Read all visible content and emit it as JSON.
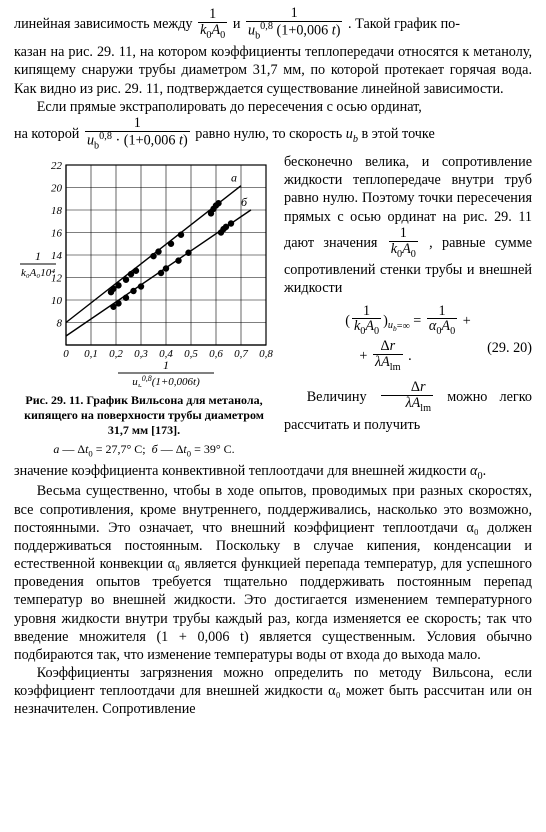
{
  "para1": {
    "t1": "линейная зависимость между ",
    "frac1_num": "1",
    "frac1_den": "k₀A₀",
    "t2": " и ",
    "frac2_num": "1",
    "frac2_den": "u_b^{0,8} (1+0,006 t)",
    "t3": " . Такой график по-",
    "t4": "казан на рис. 29. 11, на котором коэффициенты теплопередачи относятся к метанолу, кипящему снаружи трубы диаметром 31,7 мм, по которой протекает горячая вода. Как видно из рис. 29. 11, подтверждается существование линейной зависимости."
  },
  "para2": {
    "t1": "Если прямые экстраполировать до пересечения с осью ординат,",
    "t2": "на которой ",
    "frac_num": "1",
    "frac_den": "u_b^{0,8} · (1+0,006 t)",
    "t3": " равно нулю, то скорость u_b в этой точке"
  },
  "rightcol": {
    "t1": "бесконечно велика, и сопротивление жидкости теплопередаче внутри труб равно нулю. Поэтому точки пересечения прямых с осью ординат на рис. 29. 11 дают значения ",
    "frac_num": "1",
    "frac_den": "k₀A₀",
    "t2": " , равные сумме сопротивлений стенки трубы и внешней жидкости"
  },
  "eq_29_20": {
    "lhs_pre": "(",
    "lhs_frac_num": "1",
    "lhs_frac_den": "k₀A₀",
    "lhs_post_sub": "u_b = ∞",
    "rhs1_frac_num": "1",
    "rhs1_frac_den": "α₀A₀",
    "plus": " + ",
    "rhs2_frac_num": "Δr",
    "rhs2_frac_den": "λA_lm",
    "eqnum": "(29. 20)"
  },
  "para3": {
    "t1": "Величину ",
    "frac_num": "Δr",
    "frac_den": "λA_lm",
    "t2": " можно легко рассчитать и получить"
  },
  "chart": {
    "type": "scatter+line",
    "background_color": "#ffffff",
    "axis_color": "#000000",
    "grid_color": "#000000",
    "grid_width": 0.6,
    "axis_width": 1.2,
    "marker_color": "#000000",
    "line_color": "#000000",
    "xlim": [
      0,
      0.8
    ],
    "ylim": [
      6,
      22
    ],
    "xtick_step": 0.1,
    "ytick_step": 2,
    "xticks": [
      "0",
      "0,1",
      "0,2",
      "0,3",
      "0,4",
      "0,5",
      "0,6",
      "0,7",
      "0,8"
    ],
    "yticks": [
      "8",
      "10",
      "12",
      "14",
      "16",
      "18",
      "20",
      "22"
    ],
    "xlabel_frac_num": "1",
    "xlabel_frac_den": "u_b^{0,8}(1+0,006t)",
    "ylabel_frac_num": "1",
    "ylabel_frac_den": "k₀A₀10⁴",
    "series": [
      {
        "name": "a",
        "label": "a",
        "line_width": 1.4,
        "marker": "circle",
        "marker_size": 3.2,
        "intercept": 8.0,
        "points": [
          [
            0.18,
            10.7
          ],
          [
            0.19,
            11.0
          ],
          [
            0.21,
            11.3
          ],
          [
            0.24,
            11.8
          ],
          [
            0.26,
            12.3
          ],
          [
            0.28,
            12.6
          ],
          [
            0.35,
            13.9
          ],
          [
            0.37,
            14.3
          ],
          [
            0.42,
            15.0
          ],
          [
            0.46,
            15.8
          ],
          [
            0.58,
            17.7
          ],
          [
            0.59,
            18.1
          ],
          [
            0.6,
            18.4
          ],
          [
            0.61,
            18.6
          ]
        ],
        "line_end_x": 0.7
      },
      {
        "name": "b",
        "label": "б",
        "line_width": 1.4,
        "marker": "circle",
        "marker_size": 3.2,
        "intercept": 6.8,
        "points": [
          [
            0.19,
            9.4
          ],
          [
            0.21,
            9.7
          ],
          [
            0.24,
            10.2
          ],
          [
            0.27,
            10.8
          ],
          [
            0.3,
            11.2
          ],
          [
            0.38,
            12.4
          ],
          [
            0.4,
            12.8
          ],
          [
            0.45,
            13.5
          ],
          [
            0.49,
            14.2
          ],
          [
            0.62,
            16.0
          ],
          [
            0.63,
            16.3
          ],
          [
            0.64,
            16.5
          ],
          [
            0.66,
            16.8
          ]
        ],
        "line_end_x": 0.74
      }
    ]
  },
  "caption": {
    "bold": "Рис. 29. 11. График Вильсона для метанола, кипящего на поверхности трубы диаметром 31,7 мм [173].",
    "sub": "а — Δt₀ = 27,7° С;   б — Δt₀ = 39° С."
  },
  "para4": "значение коэффициента конвективной теплоотдачи для внешней жидкости α₀.",
  "para5": "Весьма существенно, чтобы в ходе опытов, проводимых при разных скоростях, все сопротивления, кроме внутреннего, поддерживались, насколько это возможно, постоянными. Это означает, что внешний коэффициент теплоотдачи α₀ должен поддерживаться постоянным. Поскольку в случае кипения, конденсации и естественной конвекции α₀ является функцией перепада температур, для успешного проведения опытов требуется тщательно поддерживать постоянным перепад температур во внешней жидкости. Это достигается изменением температурного уровня жидкости внутри трубы каждый раз, когда изменяется ее скорость; так что введение множителя (1 + 0,006 t) является существенным. Условия обычно подбираются так, что изменение температуры воды от входа до выхода мало.",
  "para6": "Коэффициенты загрязнения можно определить по методу Вильсона, если коэффициент теплоотдачи для внешней жидкости α₀ может быть рассчитан или он незначителен. Сопротивление"
}
